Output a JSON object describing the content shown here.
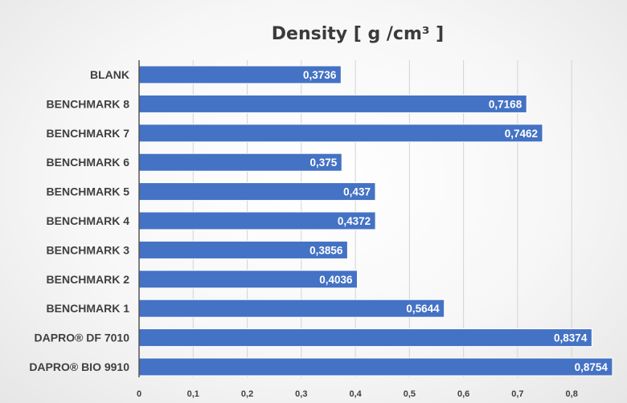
{
  "chart_data": {
    "type": "bar",
    "orientation": "horizontal",
    "title": "Density  [ g /cm³ ]",
    "categories": [
      "BLANK",
      "BENCHMARK 8",
      "BENCHMARK 7",
      "BENCHMARK 6",
      "BENCHMARK 5",
      "BENCHMARK 4",
      "BENCHMARK 3",
      "BENCHMARK 2",
      "BENCHMARK 1",
      "DAPRO® DF 7010",
      "DAPRO® BIO 9910"
    ],
    "values": [
      0.3736,
      0.7168,
      0.7462,
      0.375,
      0.437,
      0.4372,
      0.3856,
      0.4036,
      0.5644,
      0.8374,
      0.8754
    ],
    "value_labels": [
      "0,3736",
      "0,7168",
      "0,7462",
      "0,375",
      "0,437",
      "0,4372",
      "0,3856",
      "0,4036",
      "0,5644",
      "0,8374",
      "0,8754"
    ],
    "x_ticks": [
      0,
      0.1,
      0.2,
      0.3,
      0.4,
      0.5,
      0.6,
      0.7,
      0.8
    ],
    "x_tick_labels": [
      "0",
      "0,1",
      "0,2",
      "0,3",
      "0,4",
      "0,5",
      "0,6",
      "0,7",
      "0,8"
    ],
    "xlim": [
      0,
      0.88
    ],
    "xlabel": "",
    "ylabel": "",
    "grid": true,
    "legend": "none",
    "bar_color": "#4472c4",
    "bar_border_color": "#ffffff",
    "label_color": "#ffffff"
  }
}
